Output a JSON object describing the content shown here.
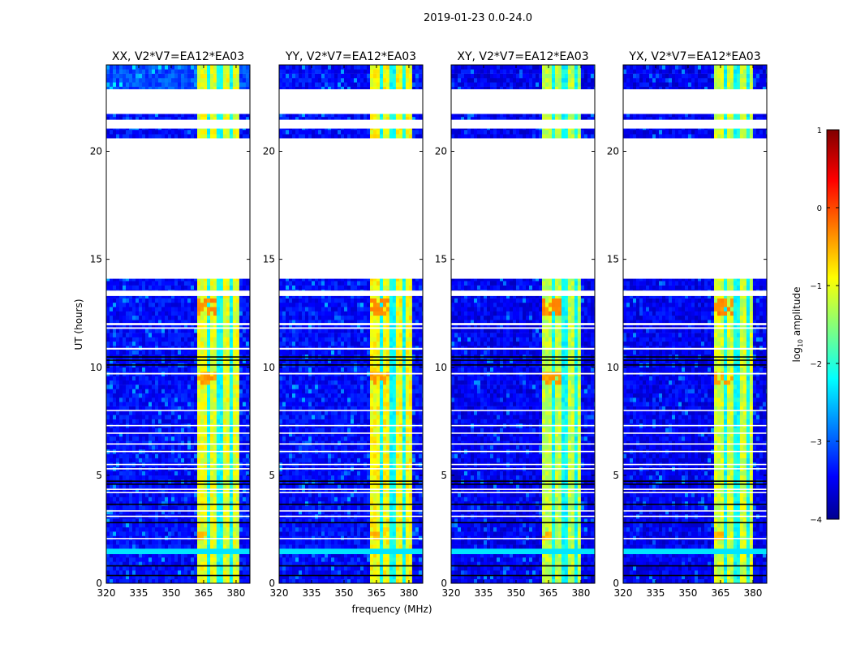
{
  "chart_data": {
    "type": "heatmap",
    "title": "2019-01-23 0.0-24.0",
    "xlabel": "frequency (MHz)",
    "ylabel": "UT (hours)",
    "xlim": [
      320,
      386.4
    ],
    "ylim": [
      0,
      24
    ],
    "xticks": [
      320,
      335,
      350,
      365,
      380
    ],
    "yticks": [
      0,
      5,
      10,
      15,
      20
    ],
    "panels": [
      {
        "title": "XX, V2*V7=EA12*EA03",
        "background_level": -3.3,
        "rfi_level": -1.0
      },
      {
        "title": "YY, V2*V7=EA12*EA03",
        "background_level": -3.3,
        "rfi_level": -0.9
      },
      {
        "title": "XY, V2*V7=EA12*EA03",
        "background_level": -3.4,
        "rfi_level": -1.2
      },
      {
        "title": "YX, V2*V7=EA12*EA03",
        "background_level": -3.4,
        "rfi_level": -1.1
      }
    ],
    "rfi_band_mhz": [
      362,
      382
    ],
    "rfi_dark_channels_mhz": [
      366.9,
      372.5,
      377.4
    ],
    "hotspots": [
      {
        "t": [
          12.4,
          13.2
        ],
        "f": [
          362,
          371
        ],
        "level": -0.4
      },
      {
        "t": [
          9.2,
          9.7
        ],
        "f": [
          362,
          371
        ],
        "level": -0.5
      },
      {
        "t": [
          2.0,
          2.4
        ],
        "f": [
          362,
          366
        ],
        "level": -0.6
      }
    ],
    "flagged_gaps_hours": [
      [
        14.1,
        20.6
      ],
      [
        21.05,
        21.46
      ],
      [
        21.73,
        22.87
      ],
      [
        13.3,
        13.55
      ],
      [
        11.95,
        12.05
      ],
      [
        11.78,
        11.85
      ],
      [
        10.82,
        10.9
      ],
      [
        9.67,
        9.74
      ],
      [
        7.97,
        8.03
      ],
      [
        7.27,
        7.33
      ],
      [
        6.92,
        6.98
      ],
      [
        6.42,
        6.48
      ],
      [
        6.07,
        6.13
      ],
      [
        5.47,
        5.53
      ],
      [
        5.27,
        5.33
      ],
      [
        4.32,
        4.38
      ],
      [
        4.17,
        4.23
      ],
      [
        3.32,
        3.38
      ],
      [
        3.07,
        3.13
      ],
      [
        2.04,
        2.1
      ]
    ],
    "cyan_band_hours": [
      [
        1.35,
        1.6
      ]
    ],
    "black_lines_hours": [
      10.47,
      10.32,
      10.1,
      4.72,
      4.58,
      3.65,
      2.8,
      0.8,
      0.35
    ],
    "colorbar": {
      "label": "log10 amplitude",
      "label_main": "log",
      "label_sub": "10",
      "label_rest": " amplitude",
      "range": [
        -4,
        1
      ],
      "ticks": [
        -4,
        -3,
        -2,
        -1,
        0,
        1
      ],
      "tick_labels": [
        "−4",
        "−3",
        "−2",
        "−1",
        "0",
        "1"
      ],
      "colormap": "jet"
    }
  }
}
